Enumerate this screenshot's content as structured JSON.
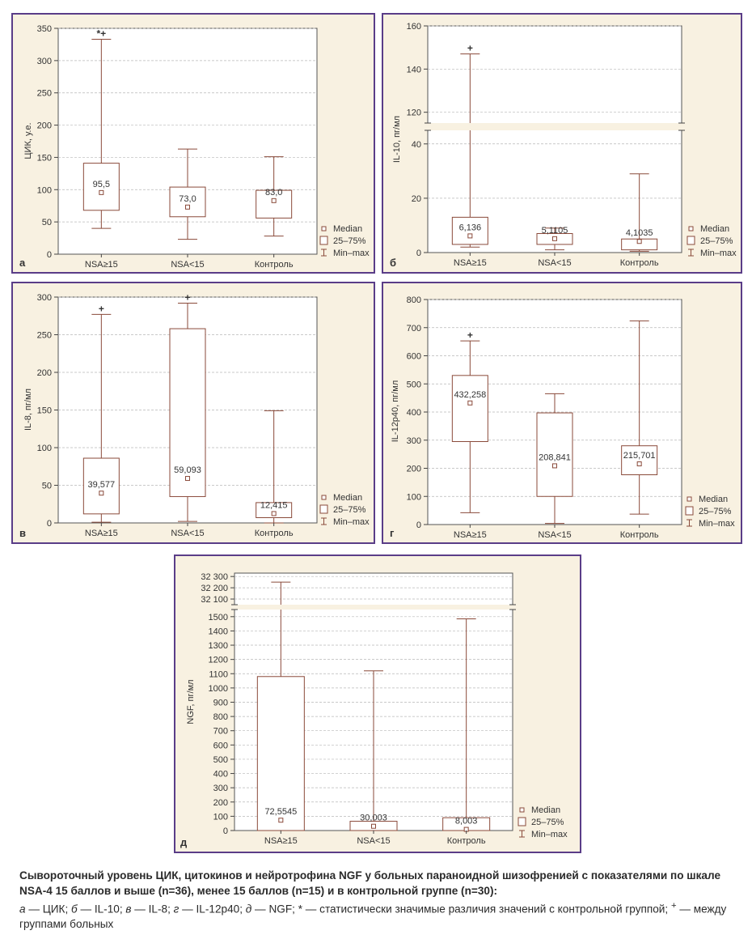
{
  "legend": {
    "median": "Median",
    "box": "25–75%",
    "whisker": "Min–max"
  },
  "caption": {
    "title": "Сывороточный уровень ЦИК, цитокинов и нейротрофина NGF у больных параноидной шизофренией с показателями по шкале NSA-4 15 баллов и выше (n=36), менее 15 баллов (n=15) и в контрольной группе (n=30):",
    "items": [
      {
        "key": "а",
        "text": "ЦИК"
      },
      {
        "key": "б",
        "text": "IL-10"
      },
      {
        "key": "в",
        "text": "IL-8"
      },
      {
        "key": "г",
        "text": "IL-12p40"
      },
      {
        "key": "д",
        "text": "NGF"
      }
    ],
    "note_star": "статистически значимые различия значений с контрольной группой",
    "note_plus": "между группами больных"
  },
  "chart_data": [
    {
      "panel_label": "а",
      "type": "box",
      "ylabel": "ЦИК, у.е.",
      "categories": [
        "NSA≥15",
        "NSA<15",
        "Контроль"
      ],
      "ylim": [
        0,
        350
      ],
      "yticks": [
        0,
        50,
        100,
        150,
        200,
        250,
        300,
        350
      ],
      "median": [
        95.5,
        73.0,
        83.0
      ],
      "q1": [
        68,
        58,
        56
      ],
      "q3": [
        141,
        104,
        99
      ],
      "min": [
        40,
        23,
        28
      ],
      "max": [
        333,
        163,
        151
      ],
      "median_labels": [
        "95,5",
        "73,0",
        "83,0"
      ],
      "markers": [
        "*+",
        "",
        ""
      ],
      "grid": true,
      "legend_position": "right"
    },
    {
      "panel_label": "б",
      "type": "box",
      "ylabel": "IL-10, пг/мл",
      "categories": [
        "NSA≥15",
        "NSA<15",
        "Контроль"
      ],
      "axis_break": [
        45,
        115
      ],
      "ylim": [
        0,
        160
      ],
      "yticks": [
        0,
        20,
        40,
        120,
        140,
        160
      ],
      "median": [
        6.136,
        5.1105,
        4.1035
      ],
      "q1": [
        3,
        3,
        1
      ],
      "q3": [
        13,
        7,
        5
      ],
      "min": [
        2,
        1,
        0.5
      ],
      "max": [
        147,
        9,
        29
      ],
      "median_labels": [
        "6,136",
        "5,1105",
        "4,1035"
      ],
      "markers": [
        "+",
        "",
        ""
      ],
      "grid": true,
      "legend_position": "right"
    },
    {
      "panel_label": "в",
      "type": "box",
      "ylabel": "IL-8, пг/мл",
      "categories": [
        "NSA≥15",
        "NSA<15",
        "Контроль"
      ],
      "ylim": [
        0,
        300
      ],
      "yticks": [
        0,
        50,
        100,
        150,
        200,
        250,
        300
      ],
      "median": [
        39.577,
        59.093,
        12.415
      ],
      "q1": [
        12,
        35,
        7
      ],
      "q3": [
        86,
        258,
        27
      ],
      "min": [
        1,
        2,
        0
      ],
      "max": [
        277,
        292,
        149
      ],
      "median_labels": [
        "39,577",
        "59,093",
        "12,415"
      ],
      "markers": [
        "+",
        "+",
        ""
      ],
      "grid": true,
      "legend_position": "right"
    },
    {
      "panel_label": "г",
      "type": "box",
      "ylabel": "IL-12p40, пг/мл",
      "categories": [
        "NSA≥15",
        "NSA<15",
        "Контроль"
      ],
      "ylim": [
        0,
        800
      ],
      "yticks": [
        0,
        100,
        200,
        300,
        400,
        500,
        600,
        700,
        800
      ],
      "median": [
        432.258,
        208.841,
        215.701
      ],
      "q1": [
        295,
        100,
        177
      ],
      "q3": [
        530,
        397,
        280
      ],
      "min": [
        42,
        4,
        37
      ],
      "max": [
        653,
        465,
        724
      ],
      "median_labels": [
        "432,258",
        "208,841",
        "215,701"
      ],
      "markers": [
        "+",
        "",
        ""
      ],
      "grid": true,
      "legend_position": "right"
    },
    {
      "panel_label": "д",
      "type": "box",
      "ylabel": "NGF, пг/мл",
      "categories": [
        "NSA≥15",
        "NSA<15",
        "Контроль"
      ],
      "axis_break": [
        1550,
        32050
      ],
      "yticks": [
        0,
        100,
        200,
        300,
        400,
        500,
        600,
        700,
        800,
        900,
        1000,
        1100,
        1200,
        1300,
        1400,
        1500,
        32100,
        32200,
        32300
      ],
      "ytick_labels": [
        "0",
        "100",
        "200",
        "300",
        "400",
        "500",
        "600",
        "700",
        "800",
        "900",
        "1000",
        "1100",
        "1200",
        "1300",
        "1400",
        "1500",
        "32 100",
        "32 200",
        "32 300"
      ],
      "median": [
        72.5545,
        30.003,
        8.003
      ],
      "q1": [
        0,
        0,
        0
      ],
      "q3": [
        1080,
        65,
        90
      ],
      "min": [
        0,
        0,
        0
      ],
      "max": [
        32250,
        1120,
        1485
      ],
      "median_labels": [
        "72,5545",
        "30,003",
        "8,003"
      ],
      "markers": [
        "",
        "",
        ""
      ],
      "grid": true,
      "legend_position": "right"
    }
  ]
}
